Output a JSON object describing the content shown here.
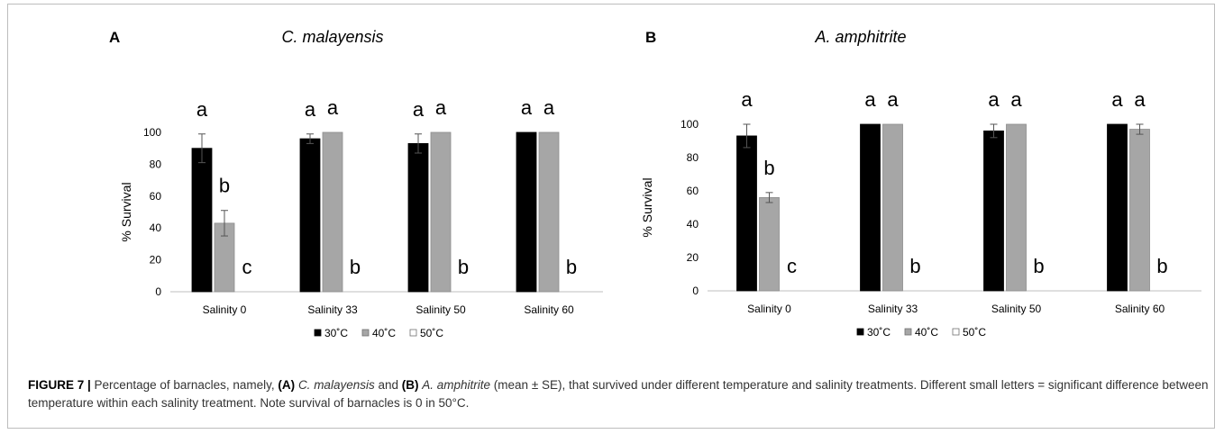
{
  "chart_data": [
    {
      "type": "bar",
      "panel_label": "A",
      "title": "C. malayensis",
      "xlabel": "",
      "ylabel": "% Survival",
      "ylim": [
        0,
        100
      ],
      "yticks": [
        0,
        20,
        40,
        60,
        80,
        100
      ],
      "categories": [
        "Salinity 0",
        "Salinity 33",
        "Salinity 50",
        "Salinity 60"
      ],
      "series": [
        {
          "name": "30˚C",
          "color": "#000000",
          "values": [
            90,
            96,
            93,
            100
          ],
          "errors": [
            9,
            3,
            6,
            0
          ]
        },
        {
          "name": "40˚C",
          "color": "#a6a6a6",
          "values": [
            43,
            100,
            100,
            100
          ],
          "errors": [
            8,
            0,
            0,
            0
          ]
        },
        {
          "name": "50˚C",
          "color": "#ffffff",
          "values": [
            0,
            0,
            0,
            0
          ],
          "errors": [
            0,
            0,
            0,
            0
          ]
        }
      ],
      "significance_letters": [
        [
          "a",
          "b",
          "c"
        ],
        [
          "a",
          "a",
          "b"
        ],
        [
          "a",
          "a",
          "b"
        ],
        [
          "a",
          "a",
          "b"
        ]
      ],
      "legend": {
        "position": "bottom",
        "entries": [
          "30˚C",
          "40˚C",
          "50˚C"
        ]
      }
    },
    {
      "type": "bar",
      "panel_label": "B",
      "title": "A. amphitrite",
      "xlabel": "",
      "ylabel": "% Survival",
      "ylim": [
        0,
        100
      ],
      "yticks": [
        0,
        20,
        40,
        60,
        80,
        100
      ],
      "categories": [
        "Salinity 0",
        "Salinity 33",
        "Salinity 50",
        "Salinity 60"
      ],
      "series": [
        {
          "name": "30˚C",
          "color": "#000000",
          "values": [
            93,
            100,
            96,
            100
          ],
          "errors": [
            7,
            0,
            4,
            0
          ]
        },
        {
          "name": "40˚C",
          "color": "#a6a6a6",
          "values": [
            56,
            100,
            100,
            97
          ],
          "errors": [
            3,
            0,
            0,
            3
          ]
        },
        {
          "name": "50˚C",
          "color": "#ffffff",
          "values": [
            0,
            0,
            0,
            0
          ],
          "errors": [
            0,
            0,
            0,
            0
          ]
        }
      ],
      "significance_letters": [
        [
          "a",
          "b",
          "c"
        ],
        [
          "a",
          "a",
          "b"
        ],
        [
          "a",
          "a",
          "b"
        ],
        [
          "a",
          "a",
          "b"
        ]
      ],
      "legend": {
        "position": "bottom",
        "entries": [
          "30˚C",
          "40˚C",
          "50˚C"
        ]
      }
    }
  ],
  "caption": {
    "figure_label": "FIGURE 7 |",
    "text_1": " Percentage of barnacles, namely, ",
    "label_a": "(A)",
    "species_a": "C. malayensis",
    "text_2": " and ",
    "label_b": "(B)",
    "species_b": "A. amphitrite",
    "text_3": " (mean ± SE), that survived under different temperature and salinity treatments. Different small letters = significant difference between temperature within each salinity treatment. Note survival of barnacles is 0 in 50°C."
  }
}
